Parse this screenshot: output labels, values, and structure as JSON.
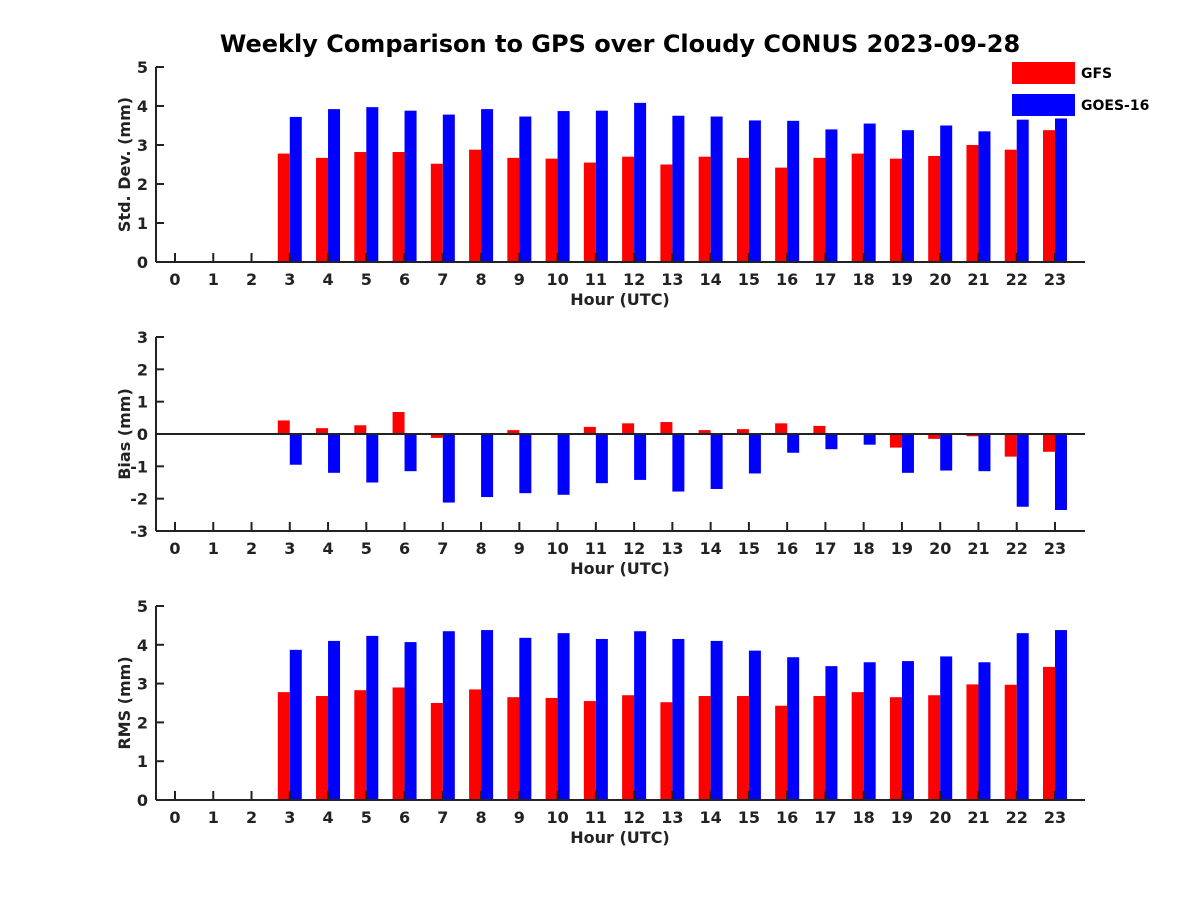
{
  "title": "Weekly Comparison to GPS over Cloudy CONUS 2023-09-28",
  "legend": [
    {
      "name": "GFS",
      "color": "#ff0000"
    },
    {
      "name": "GOES-16",
      "color": "#0000ff"
    }
  ],
  "colors": {
    "gfs": "#ff0000",
    "goes": "#0000ff",
    "axis": "#222222"
  },
  "chart_data": [
    {
      "type": "bar",
      "xlabel": "Hour (UTC)",
      "ylabel": "Std. Dev. (mm)",
      "ylim": [
        0,
        5
      ],
      "yticks": [
        0,
        1,
        2,
        3,
        4,
        5
      ],
      "categories": [
        "0",
        "1",
        "2",
        "3",
        "4",
        "5",
        "6",
        "7",
        "8",
        "9",
        "10",
        "11",
        "12",
        "13",
        "14",
        "15",
        "16",
        "17",
        "18",
        "19",
        "20",
        "21",
        "22",
        "23"
      ],
      "series": [
        {
          "name": "GFS",
          "values": [
            null,
            null,
            null,
            2.78,
            2.67,
            2.82,
            2.82,
            2.52,
            2.88,
            2.67,
            2.65,
            2.55,
            2.7,
            2.5,
            2.7,
            2.67,
            2.42,
            2.67,
            2.78,
            2.65,
            2.72,
            3.0,
            2.88,
            3.38
          ]
        },
        {
          "name": "GOES-16",
          "values": [
            null,
            null,
            null,
            3.72,
            3.92,
            3.97,
            3.88,
            3.78,
            3.92,
            3.73,
            3.87,
            3.88,
            4.08,
            3.75,
            3.73,
            3.63,
            3.62,
            3.4,
            3.55,
            3.38,
            3.5,
            3.35,
            3.65,
            3.68
          ]
        }
      ]
    },
    {
      "type": "bar",
      "xlabel": "Hour (UTC)",
      "ylabel": "Bias (mm)",
      "ylim": [
        -3,
        3
      ],
      "yticks": [
        -3,
        -2,
        -1,
        0,
        1,
        2,
        3
      ],
      "categories": [
        "0",
        "1",
        "2",
        "3",
        "4",
        "5",
        "6",
        "7",
        "8",
        "9",
        "10",
        "11",
        "12",
        "13",
        "14",
        "15",
        "16",
        "17",
        "18",
        "19",
        "20",
        "21",
        "22",
        "23"
      ],
      "series": [
        {
          "name": "GFS",
          "values": [
            null,
            null,
            null,
            0.42,
            0.18,
            0.27,
            0.68,
            -0.12,
            -0.02,
            0.12,
            0.02,
            0.22,
            0.33,
            0.37,
            0.12,
            0.15,
            0.33,
            0.25,
            -0.03,
            -0.42,
            -0.15,
            -0.07,
            -0.7,
            -0.55
          ]
        },
        {
          "name": "GOES-16",
          "values": [
            null,
            null,
            null,
            -0.95,
            -1.2,
            -1.5,
            -1.15,
            -2.12,
            -1.95,
            -1.83,
            -1.88,
            -1.52,
            -1.42,
            -1.78,
            -1.7,
            -1.22,
            -0.58,
            -0.47,
            -0.33,
            -1.2,
            -1.13,
            -1.15,
            -2.25,
            -2.35
          ]
        }
      ]
    },
    {
      "type": "bar",
      "xlabel": "Hour (UTC)",
      "ylabel": "RMS (mm)",
      "ylim": [
        0,
        5
      ],
      "yticks": [
        0,
        1,
        2,
        3,
        4,
        5
      ],
      "categories": [
        "0",
        "1",
        "2",
        "3",
        "4",
        "5",
        "6",
        "7",
        "8",
        "9",
        "10",
        "11",
        "12",
        "13",
        "14",
        "15",
        "16",
        "17",
        "18",
        "19",
        "20",
        "21",
        "22",
        "23"
      ],
      "series": [
        {
          "name": "GFS",
          "values": [
            null,
            null,
            null,
            2.78,
            2.68,
            2.83,
            2.9,
            2.5,
            2.85,
            2.65,
            2.63,
            2.55,
            2.7,
            2.52,
            2.68,
            2.68,
            2.43,
            2.68,
            2.78,
            2.65,
            2.7,
            2.98,
            2.97,
            3.43
          ]
        },
        {
          "name": "GOES-16",
          "values": [
            null,
            null,
            null,
            3.87,
            4.1,
            4.23,
            4.07,
            4.35,
            4.38,
            4.18,
            4.3,
            4.15,
            4.35,
            4.15,
            4.1,
            3.85,
            3.68,
            3.45,
            3.55,
            3.58,
            3.7,
            3.55,
            4.3,
            4.38
          ]
        }
      ]
    }
  ]
}
